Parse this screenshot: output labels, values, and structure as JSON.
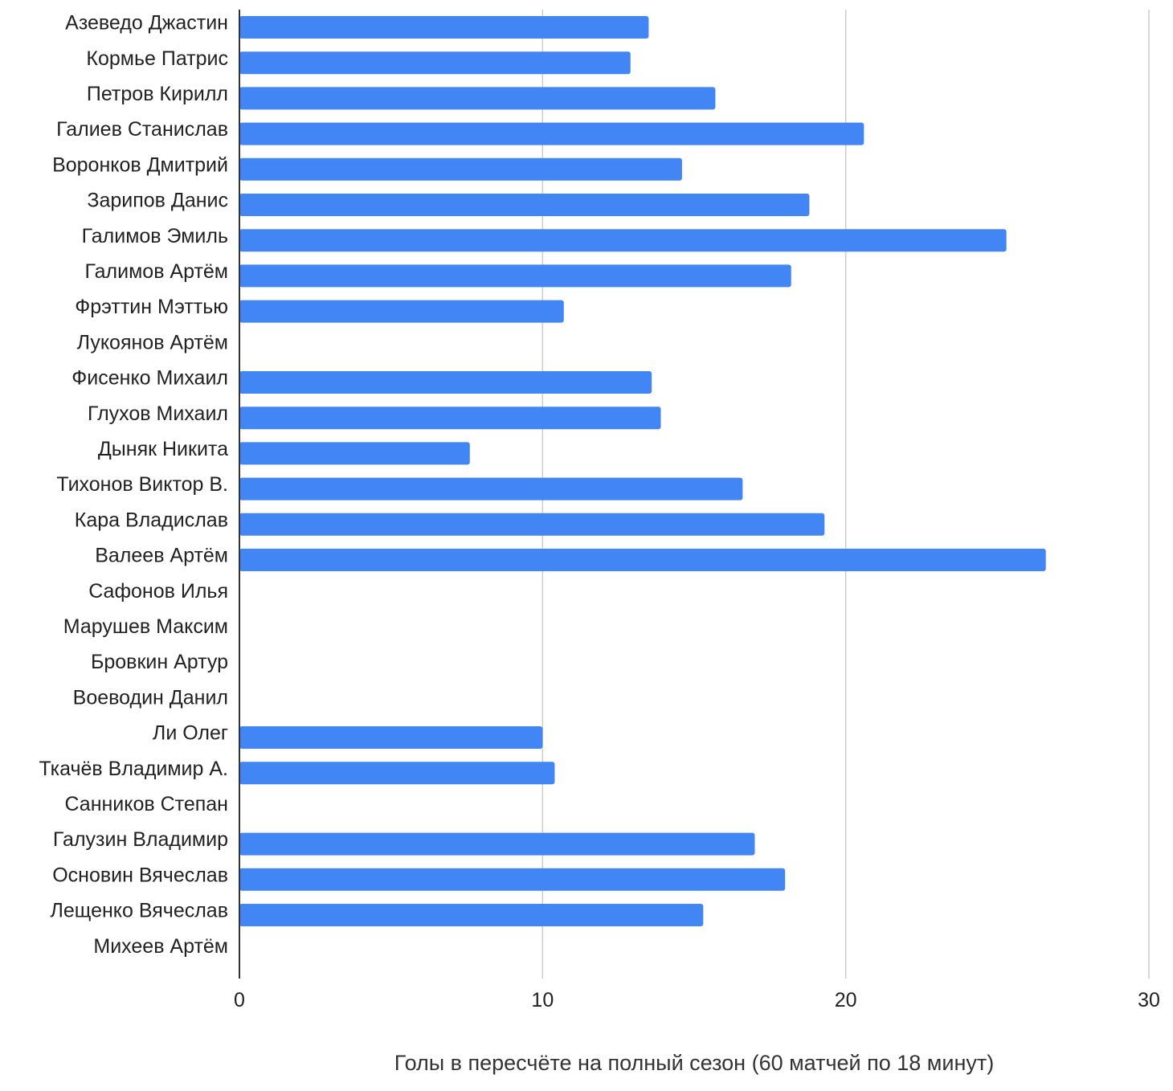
{
  "chart_data": {
    "type": "bar",
    "orientation": "horizontal",
    "categories": [
      "Азеведо Джастин",
      "Кормье Патрис",
      "Петров Кирилл",
      "Галиев Станислав",
      "Воронков Дмитрий",
      "Зарипов Данис",
      "Галимов Эмиль",
      "Галимов Артём",
      "Фрэттин Мэттью",
      "Лукоянов Артём",
      "Фисенко Михаил",
      "Глухов Михаил",
      "Дыняк Никита",
      "Тихонов Виктор В.",
      "Кара Владислав",
      "Валеев Артём",
      "Сафонов Илья",
      "Марушев Максим",
      "Бровкин Артур",
      "Воеводин Данил",
      "Ли Олег",
      "Ткачёв Владимир А.",
      "Санников Степан",
      "Галузин Владимир",
      "Основин Вячеслав",
      "Лещенко Вячеслав",
      "Михеев Артём"
    ],
    "values": [
      13.5,
      12.9,
      15.7,
      20.6,
      14.6,
      18.8,
      25.3,
      18.2,
      10.7,
      0,
      13.6,
      13.9,
      7.6,
      16.6,
      19.3,
      26.6,
      0,
      0,
      0,
      0,
      10,
      10.4,
      0,
      17,
      18,
      15.3,
      0
    ],
    "xlabel": "Голы в пересчёте на полный сезон (60 матчей по 18 минут)",
    "ylabel": "",
    "xlim": [
      0,
      30
    ],
    "xticks": [
      "0",
      "10",
      "20",
      "30"
    ],
    "grid": "vertical",
    "legend": "none",
    "bar_color": "#4285f4",
    "grid_color": "#cccccc",
    "axis_color": "#333333"
  }
}
